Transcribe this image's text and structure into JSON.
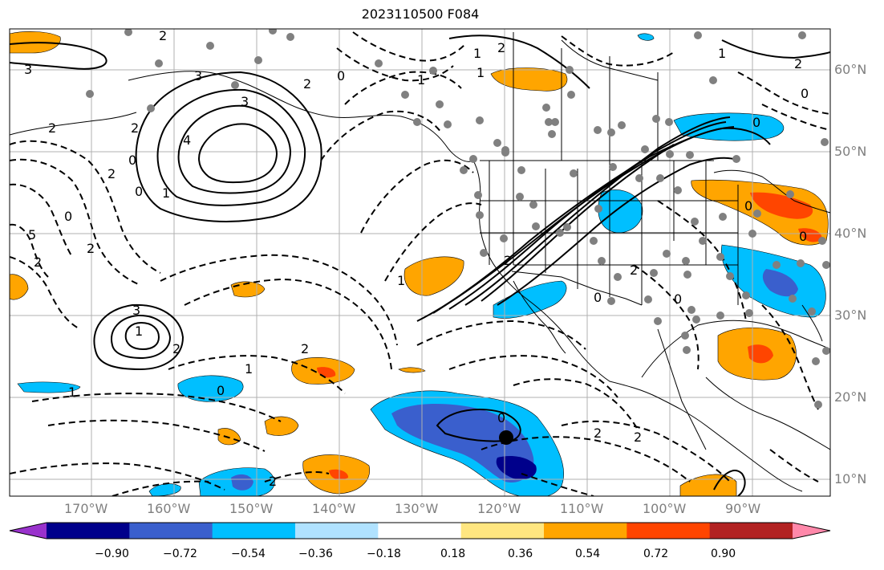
{
  "title": "2023110500 F084",
  "lon_labels": [
    "170°W",
    "160°W",
    "150°W",
    "140°W",
    "130°W",
    "120°W",
    "110°W",
    "100°W",
    "90°W"
  ],
  "lat_labels": [
    "60°N",
    "50°N",
    "40°N",
    "30°N",
    "20°N",
    "10°N"
  ],
  "colorbar": {
    "ticks": [
      "−0.90",
      "−0.72",
      "−0.54",
      "−0.36",
      "−0.18",
      "0.18",
      "0.36",
      "0.54",
      "0.72",
      "0.90"
    ],
    "colors": [
      "#9932cc",
      "#00008b",
      "#3a5fcd",
      "#00bfff",
      "#b0e2ff",
      "#ffffff",
      "#ffe680",
      "#ffa500",
      "#ff4500",
      "#b22222",
      "#ff88aa"
    ]
  },
  "contour_labels": [
    "3",
    "2",
    "3",
    "3",
    "2",
    "4",
    "2",
    "0",
    "1",
    "2",
    "0",
    "2",
    "0",
    "2",
    "5",
    "2",
    "3",
    "1",
    "2",
    "1",
    "2",
    "0",
    "1",
    "2",
    "1",
    "2",
    "0",
    "2",
    "0",
    "0",
    "2",
    "2",
    "1",
    "2",
    "1",
    "1",
    "0",
    "0",
    "1",
    "2",
    "0",
    "0",
    "0"
  ]
}
